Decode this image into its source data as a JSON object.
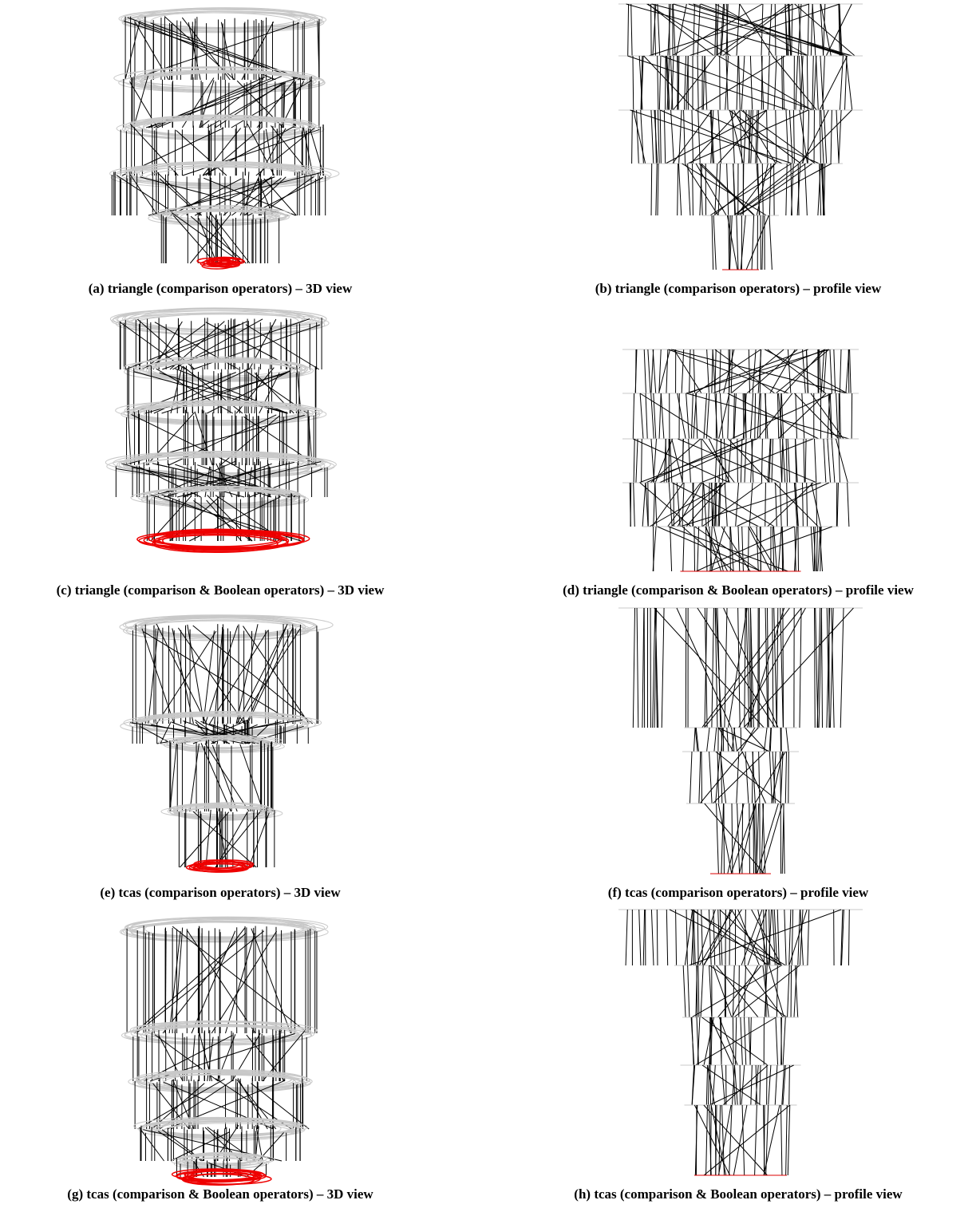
{
  "figures": [
    {
      "caption": "(a) triangle (comparison operators) – 3D view"
    },
    {
      "caption": "(b) triangle (comparison operators) – profile view"
    },
    {
      "caption": "(c) triangle (comparison & Boolean operators) – 3D view"
    },
    {
      "caption": "(d) triangle (comparison & Boolean operators) – profile view"
    },
    {
      "caption": "(e) tcas (comparison operators) – 3D view"
    },
    {
      "caption": "(f) tcas (comparison operators) – profile view"
    },
    {
      "caption": "(g) tcas (comparison & Boolean operators) – 3D view"
    },
    {
      "caption": "(h) tcas (comparison & Boolean operators) – profile view"
    }
  ]
}
